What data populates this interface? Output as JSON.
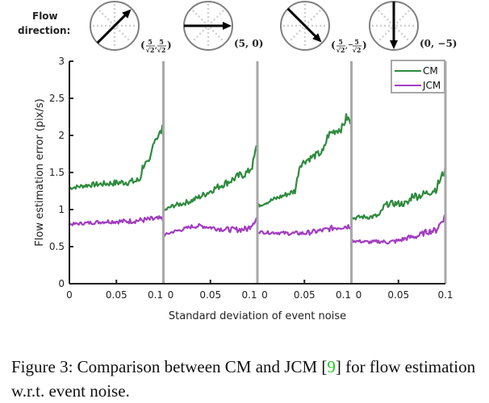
{
  "chart_data": {
    "type": "line",
    "ylabel": "Flow estimation error (pix/s)",
    "xlabel": "Standard deviation of event noise",
    "ylim": [
      0,
      3
    ],
    "yticks": [
      "0",
      "0.5",
      "1",
      "1.5",
      "2",
      "2.5",
      "3"
    ],
    "xlim": [
      0,
      0.1
    ],
    "xticks": [
      "0",
      "0.05",
      "0.1"
    ],
    "legend": {
      "placement": "top-right",
      "entries": [
        {
          "name": "CM",
          "color": "#2e8b3e"
        },
        {
          "name": "JCM",
          "color": "#a23cc0"
        }
      ]
    },
    "flow_direction_label": [
      "Flow",
      "direction:"
    ],
    "panels": [
      {
        "flow": {
          "dx": 3.54,
          "dy": 3.54,
          "label": "(5/√2, 5/√2)",
          "label_parts": [
            "5",
            "√2",
            "5",
            "√2"
          ]
        },
        "series": [
          {
            "name": "CM",
            "x": [
              0,
              0.01,
              0.02,
              0.03,
              0.04,
              0.05,
              0.06,
              0.07,
              0.075,
              0.078,
              0.08,
              0.085,
              0.09,
              0.095,
              0.1
            ],
            "y": [
              1.29,
              1.31,
              1.33,
              1.34,
              1.35,
              1.36,
              1.37,
              1.38,
              1.4,
              1.58,
              1.62,
              1.6,
              1.95,
              2.0,
              2.1
            ]
          },
          {
            "name": "JCM",
            "x": [
              0,
              0.01,
              0.02,
              0.03,
              0.04,
              0.05,
              0.06,
              0.07,
              0.08,
              0.09,
              0.1
            ],
            "y": [
              0.8,
              0.81,
              0.82,
              0.83,
              0.84,
              0.84,
              0.84,
              0.85,
              0.86,
              0.87,
              0.87
            ]
          }
        ]
      },
      {
        "flow": {
          "dx": 5,
          "dy": 0,
          "label": "(5, 0)"
        },
        "series": [
          {
            "name": "CM",
            "x": [
              0,
              0.01,
              0.02,
              0.03,
              0.04,
              0.05,
              0.06,
              0.07,
              0.08,
              0.09,
              0.095,
              0.1
            ],
            "y": [
              0.98,
              1.05,
              1.08,
              1.12,
              1.18,
              1.25,
              1.32,
              1.38,
              1.45,
              1.5,
              1.6,
              1.9
            ]
          },
          {
            "name": "JCM",
            "x": [
              0,
              0.01,
              0.02,
              0.03,
              0.04,
              0.05,
              0.06,
              0.07,
              0.08,
              0.09,
              0.1
            ],
            "y": [
              0.65,
              0.7,
              0.73,
              0.77,
              0.78,
              0.76,
              0.74,
              0.73,
              0.73,
              0.74,
              0.9
            ]
          }
        ]
      },
      {
        "flow": {
          "dx": 3.54,
          "dy": -3.54,
          "label": "(5/√2, −5/√2)",
          "label_parts": [
            "5",
            "√2",
            "5",
            "√2"
          ]
        },
        "series": [
          {
            "name": "CM",
            "x": [
              0,
              0.01,
              0.02,
              0.03,
              0.04,
              0.045,
              0.05,
              0.06,
              0.07,
              0.075,
              0.08,
              0.09,
              0.095,
              0.1
            ],
            "y": [
              1.05,
              1.1,
              1.15,
              1.2,
              1.25,
              1.6,
              1.65,
              1.72,
              1.78,
              2.0,
              2.05,
              2.1,
              2.25,
              2.15
            ]
          },
          {
            "name": "JCM",
            "x": [
              0,
              0.01,
              0.02,
              0.03,
              0.04,
              0.05,
              0.06,
              0.07,
              0.08,
              0.09,
              0.1
            ],
            "y": [
              0.7,
              0.69,
              0.69,
              0.68,
              0.68,
              0.68,
              0.7,
              0.72,
              0.75,
              0.77,
              0.78
            ]
          }
        ]
      },
      {
        "flow": {
          "dx": 0,
          "dy": -5,
          "label": "(0, −5)"
        },
        "series": [
          {
            "name": "CM",
            "x": [
              0,
              0.01,
              0.02,
              0.03,
              0.035,
              0.04,
              0.05,
              0.06,
              0.065,
              0.07,
              0.08,
              0.09,
              0.1
            ],
            "y": [
              0.88,
              0.9,
              0.9,
              0.92,
              1.05,
              1.08,
              1.08,
              1.08,
              1.2,
              1.18,
              1.22,
              1.28,
              1.55
            ]
          },
          {
            "name": "JCM",
            "x": [
              0,
              0.01,
              0.02,
              0.03,
              0.04,
              0.05,
              0.06,
              0.07,
              0.08,
              0.09,
              0.1
            ],
            "y": [
              0.58,
              0.57,
              0.56,
              0.57,
              0.56,
              0.58,
              0.62,
              0.64,
              0.7,
              0.72,
              0.92
            ]
          }
        ]
      }
    ]
  },
  "caption": {
    "prefix": "Figure 3: Comparison between CM and JCM [",
    "ref": "9",
    "suffix": "] for flow estimation w.r.t. event noise."
  }
}
